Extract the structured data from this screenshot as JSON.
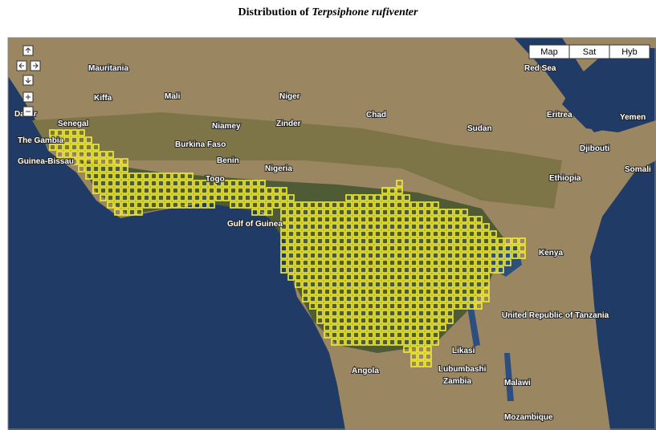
{
  "header": {
    "title_prefix": "Distribution of ",
    "title_species": "Terpsiphone rufiventer"
  },
  "map_types": [
    "Map",
    "Sat",
    "Hyb"
  ],
  "places": [
    "Mauritania",
    "Mali",
    "Niger",
    "Chad",
    "Sudan",
    "Senegal",
    "The Gambia",
    "Guinea-Bissau",
    "Dakar",
    "Kiffa",
    "Niamey",
    "Zinder",
    "Burkina Faso",
    "Benin",
    "Togo",
    "Nigeria",
    "Gulf of Guinea",
    "Red Sea",
    "Eritrea",
    "Djibouti",
    "Yemen",
    "Somali",
    "Ethiopia",
    "Kenya",
    "United Republic of Tanzania",
    "Angola",
    "Zambia",
    "Malawi",
    "Mozambique",
    "Lubumbashi",
    "Likasi"
  ]
}
